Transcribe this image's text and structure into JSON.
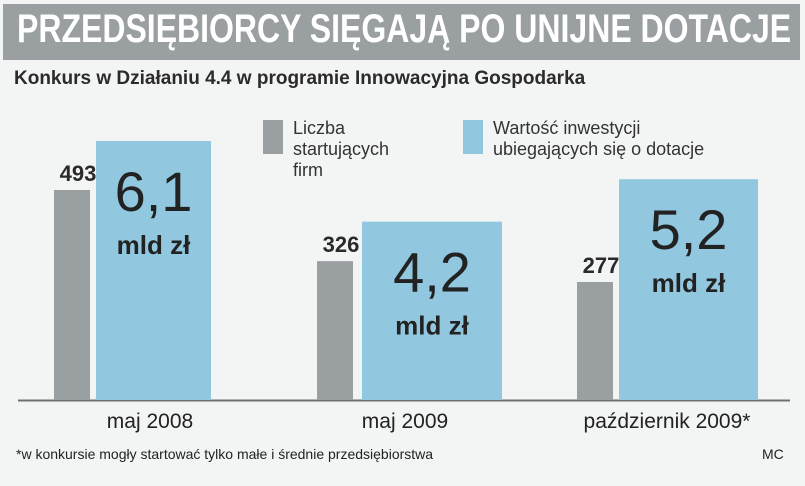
{
  "header": {
    "title": "PRZEDSIĘBIORCY SIĘGAJĄ PO UNIJNE DOTACJE",
    "subtitle": "Konkurs w Działaniu 4.4 w programie Innowacyjna Gospodarka"
  },
  "legend": {
    "companies": "Liczba\nstartujących\nfirm",
    "investment": "Wartość inwestycji\nubiegających się o dotacje"
  },
  "colors": {
    "companies": "#9a9fa2",
    "investment": "#91c7df"
  },
  "chart_data": {
    "type": "bar",
    "title": "Konkurs w Działaniu 4.4 w programie Innowacyjna Gospodarka",
    "categories": [
      "maj 2008",
      "maj 2009",
      "październik 2009*"
    ],
    "series": [
      {
        "name": "Liczba startujących firm",
        "values": [
          493,
          326,
          277
        ],
        "labels": [
          "493",
          "326",
          "277"
        ]
      },
      {
        "name": "Wartość inwestycji ubiegających się o dotacje",
        "values": [
          6.1,
          4.2,
          5.2
        ],
        "labels": [
          "6,1",
          "4,2",
          "5,2"
        ],
        "unit": "mld zł"
      }
    ]
  },
  "footnote": "*w konkursie mogły startować tylko małe i średnie przedsiębiorstwa",
  "credit": "MC"
}
